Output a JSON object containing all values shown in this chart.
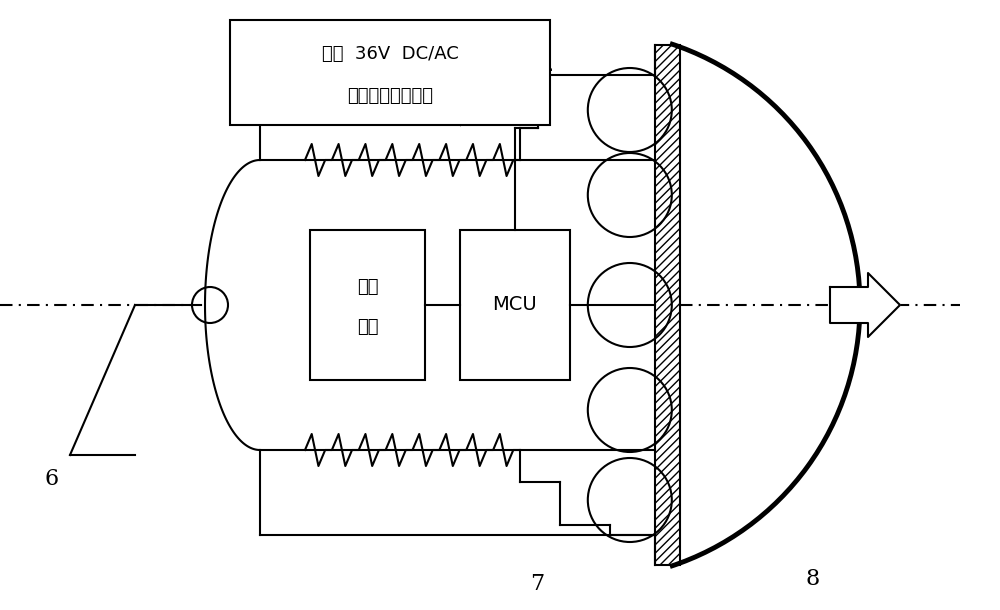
{
  "bg_color": "#ffffff",
  "line_color": "#000000",
  "label_6": "6",
  "label_7": "7",
  "label_8": "8",
  "box1_label_line1": "电源",
  "box1_label_line2": "模块",
  "box2_label": "MCU",
  "annotation_line1": "小于  36V  DC/AC",
  "annotation_line2": "低压电源输出端口",
  "figsize": [
    10.0,
    6.1
  ],
  "dpi": 100
}
